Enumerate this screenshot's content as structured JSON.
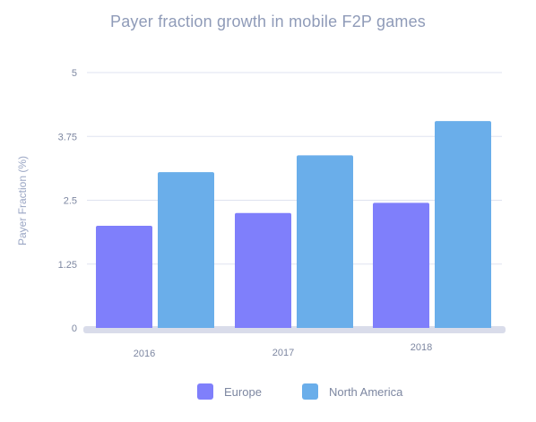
{
  "chart_data": {
    "type": "bar",
    "title": "Payer fraction growth in mobile F2P games",
    "xlabel": "",
    "ylabel": "Payer Fraction (%)",
    "ylim": [
      0,
      5
    ],
    "yticks": [
      "0",
      "1.25",
      "2.5",
      "3.75",
      "5"
    ],
    "categories": [
      "2016",
      "2017",
      "2018"
    ],
    "series": [
      {
        "name": "Europe",
        "color": "#7f7ffb",
        "values": [
          2.0,
          2.25,
          2.45
        ]
      },
      {
        "name": "North America",
        "color": "#6aaeea",
        "values": [
          3.05,
          3.38,
          4.05
        ]
      }
    ],
    "grid": true,
    "legend_position": "bottom"
  }
}
